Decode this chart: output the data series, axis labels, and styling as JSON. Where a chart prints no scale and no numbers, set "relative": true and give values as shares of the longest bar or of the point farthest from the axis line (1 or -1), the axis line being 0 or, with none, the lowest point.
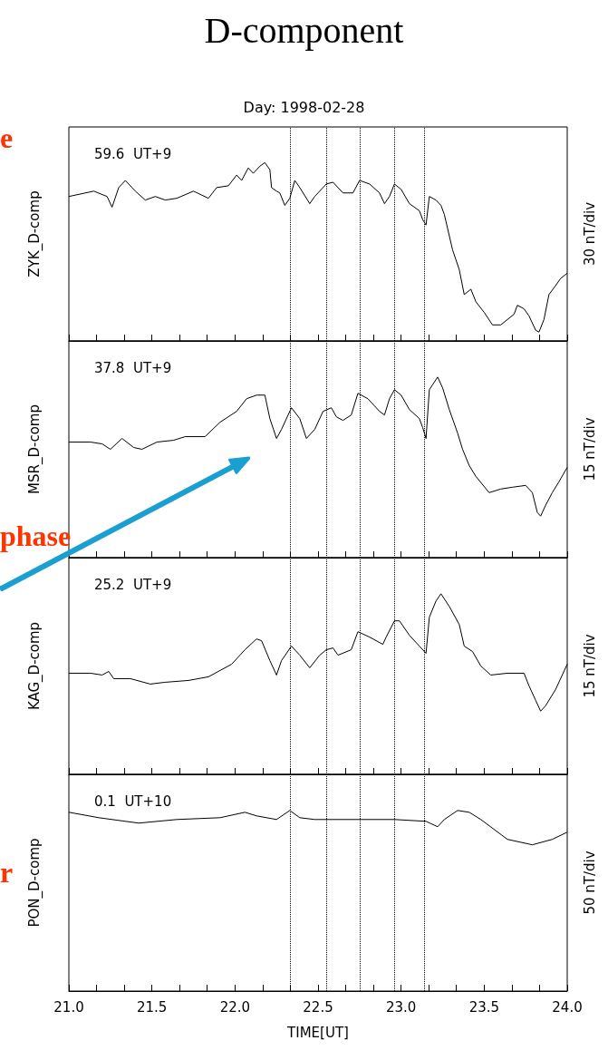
{
  "chart_data": [
    {
      "type": "line",
      "relative": true,
      "title": "D-component",
      "subtitle": "Day: 1998-02-28",
      "ylabel": "ZYK_D-comp",
      "y2label": "30 nT/div",
      "color": "#000000",
      "tick_labels": false,
      "xlim": [
        21,
        24
      ],
      "xticks": [
        {
          "value": 21,
          "label": null
        },
        {
          "value": 21.167,
          "label": null
        },
        {
          "value": 21.333,
          "label": null
        },
        {
          "value": 21.5,
          "label": null
        },
        {
          "value": 21.667,
          "label": null
        },
        {
          "value": 21.833,
          "label": null
        },
        {
          "value": 22,
          "label": null
        },
        {
          "value": 22.167,
          "label": null
        },
        {
          "value": 22.333,
          "label": null
        },
        {
          "value": 22.5,
          "label": null
        },
        {
          "value": 22.667,
          "label": null
        },
        {
          "value": 22.833,
          "label": null
        },
        {
          "value": 23,
          "label": null
        },
        {
          "value": 23.167,
          "label": null
        },
        {
          "value": 23.333,
          "label": null
        },
        {
          "value": 23.5,
          "label": null
        },
        {
          "value": 23.667,
          "label": null
        },
        {
          "value": 23.833,
          "label": null
        },
        {
          "value": 24,
          "label": null
        }
      ],
      "x": [
        21.0,
        21.15,
        21.23,
        21.26,
        21.3,
        21.34,
        21.4,
        21.46,
        21.52,
        21.58,
        21.65,
        21.75,
        21.84,
        21.89,
        21.96,
        22.01,
        22.04,
        22.08,
        22.11,
        22.15,
        22.18,
        22.21,
        22.22,
        22.25,
        22.27,
        22.3,
        22.33,
        22.36,
        22.39,
        22.45,
        22.48,
        22.55,
        22.59,
        22.65,
        22.71,
        22.75,
        22.81,
        22.87,
        22.9,
        22.93,
        22.96,
        23.0,
        23.05,
        23.11,
        23.13,
        23.15,
        23.17,
        23.21,
        23.24,
        23.26,
        23.28,
        23.31,
        23.35,
        23.38,
        23.42,
        23.45,
        23.5,
        23.55,
        23.6,
        23.64,
        23.68,
        23.7,
        23.74,
        23.77,
        23.81,
        23.83,
        23.86,
        23.89,
        23.93,
        23.96,
        24.0
      ],
      "values": [
        0.81,
        0.84,
        0.81,
        0.75,
        0.86,
        0.9,
        0.84,
        0.79,
        0.81,
        0.79,
        0.8,
        0.84,
        0.8,
        0.86,
        0.87,
        0.93,
        0.9,
        0.97,
        0.94,
        0.98,
        1,
        0.96,
        0.86,
        0.84,
        0.83,
        0.76,
        0.8,
        0.9,
        0.86,
        0.77,
        0.81,
        0.88,
        0.89,
        0.83,
        0.83,
        0.9,
        0.88,
        0.83,
        0.77,
        0.81,
        0.88,
        0.85,
        0.77,
        0.73,
        0.68,
        0.65,
        0.81,
        0.79,
        0.76,
        0.71,
        0.63,
        0.51,
        0.4,
        0.26,
        0.29,
        0.22,
        0.16,
        0.09,
        0.09,
        0.12,
        0.15,
        0.2,
        0.18,
        0.14,
        0.06,
        0.05,
        0.12,
        0.26,
        0.31,
        0.35,
        0.38
      ],
      "ref_lines": [
        {
          "axis": "x",
          "value": 22.33,
          "line_style": "dotted"
        },
        {
          "axis": "x",
          "value": 22.55,
          "line_style": "dotted"
        },
        {
          "axis": "x",
          "value": 22.75,
          "line_style": "dotted"
        },
        {
          "axis": "x",
          "value": 22.96,
          "line_style": "dotted"
        },
        {
          "axis": "x",
          "value": 23.14,
          "line_style": "dotted"
        }
      ],
      "annotations": [
        "59.6  UT+9",
        "e"
      ]
    },
    {
      "type": "line",
      "relative": true,
      "ylabel": "MSR_D-comp",
      "y2label": "15 nT/div",
      "color": "#000000",
      "tick_labels": false,
      "xlim": [
        21,
        24
      ],
      "xticks": [
        {
          "value": 21,
          "label": null
        },
        {
          "value": 21.167,
          "label": null
        },
        {
          "value": 21.333,
          "label": null
        },
        {
          "value": 21.5,
          "label": null
        },
        {
          "value": 21.667,
          "label": null
        },
        {
          "value": 21.833,
          "label": null
        },
        {
          "value": 22,
          "label": null
        },
        {
          "value": 22.167,
          "label": null
        },
        {
          "value": 22.333,
          "label": null
        },
        {
          "value": 22.5,
          "label": null
        },
        {
          "value": 22.667,
          "label": null
        },
        {
          "value": 22.833,
          "label": null
        },
        {
          "value": 23,
          "label": null
        },
        {
          "value": 23.167,
          "label": null
        },
        {
          "value": 23.333,
          "label": null
        },
        {
          "value": 23.5,
          "label": null
        },
        {
          "value": 23.667,
          "label": null
        },
        {
          "value": 23.833,
          "label": null
        },
        {
          "value": 24,
          "label": null
        }
      ],
      "x": [
        21.0,
        21.13,
        21.2,
        21.25,
        21.32,
        21.39,
        21.44,
        21.53,
        21.63,
        21.7,
        21.82,
        21.91,
        22.01,
        22.07,
        22.13,
        22.18,
        22.21,
        22.25,
        22.28,
        22.34,
        22.39,
        22.43,
        22.48,
        22.53,
        22.58,
        22.61,
        22.65,
        22.7,
        22.74,
        22.8,
        22.87,
        22.9,
        22.93,
        22.96,
        23.0,
        23.05,
        23.11,
        23.13,
        23.15,
        23.17,
        23.22,
        23.25,
        23.29,
        23.34,
        23.37,
        23.41,
        23.45,
        23.53,
        23.6,
        23.67,
        23.75,
        23.79,
        23.82,
        23.84,
        23.87,
        23.91,
        23.95,
        24.0
      ],
      "values": [
        0.64,
        0.64,
        0.63,
        0.6,
        0.66,
        0.61,
        0.6,
        0.64,
        0.65,
        0.67,
        0.67,
        0.75,
        0.81,
        0.88,
        0.9,
        0.9,
        0.77,
        0.66,
        0.71,
        0.83,
        0.77,
        0.66,
        0.71,
        0.81,
        0.83,
        0.78,
        0.76,
        0.79,
        0.91,
        0.88,
        0.81,
        0.79,
        0.88,
        0.93,
        0.9,
        0.82,
        0.77,
        0.72,
        0.66,
        0.93,
        1,
        0.94,
        0.82,
        0.69,
        0.6,
        0.51,
        0.45,
        0.36,
        0.38,
        0.39,
        0.4,
        0.36,
        0.25,
        0.23,
        0.29,
        0.36,
        0.42,
        0.5
      ],
      "ref_lines": [
        {
          "axis": "x",
          "value": 22.33,
          "line_style": "dotted"
        },
        {
          "axis": "x",
          "value": 22.55,
          "line_style": "dotted"
        },
        {
          "axis": "x",
          "value": 22.75,
          "line_style": "dotted"
        },
        {
          "axis": "x",
          "value": 22.96,
          "line_style": "dotted"
        },
        {
          "axis": "x",
          "value": 23.14,
          "line_style": "dotted"
        }
      ],
      "annotations": [
        "37.8  UT+9",
        "phase"
      ]
    },
    {
      "type": "line",
      "relative": true,
      "ylabel": "KAG_D-comp",
      "y2label": "15 nT/div",
      "color": "#000000",
      "tick_labels": false,
      "xlim": [
        21,
        24
      ],
      "xticks": [
        {
          "value": 21,
          "label": null
        },
        {
          "value": 21.167,
          "label": null
        },
        {
          "value": 21.333,
          "label": null
        },
        {
          "value": 21.5,
          "label": null
        },
        {
          "value": 21.667,
          "label": null
        },
        {
          "value": 21.833,
          "label": null
        },
        {
          "value": 22,
          "label": null
        },
        {
          "value": 22.167,
          "label": null
        },
        {
          "value": 22.333,
          "label": null
        },
        {
          "value": 22.5,
          "label": null
        },
        {
          "value": 22.667,
          "label": null
        },
        {
          "value": 22.833,
          "label": null
        },
        {
          "value": 23,
          "label": null
        },
        {
          "value": 23.167,
          "label": null
        },
        {
          "value": 23.333,
          "label": null
        },
        {
          "value": 23.5,
          "label": null
        },
        {
          "value": 23.667,
          "label": null
        },
        {
          "value": 23.833,
          "label": null
        },
        {
          "value": 24,
          "label": null
        }
      ],
      "x": [
        21.0,
        21.13,
        21.2,
        21.24,
        21.27,
        21.37,
        21.49,
        21.58,
        21.72,
        21.84,
        21.98,
        22.06,
        22.13,
        22.16,
        22.21,
        22.25,
        22.28,
        22.34,
        22.39,
        22.45,
        22.51,
        22.55,
        22.59,
        22.62,
        22.7,
        22.74,
        22.81,
        22.89,
        22.91,
        22.96,
        22.99,
        23.05,
        23.11,
        23.15,
        23.17,
        23.21,
        23.24,
        23.29,
        23.35,
        23.38,
        23.43,
        23.48,
        23.54,
        23.64,
        23.74,
        23.77,
        23.81,
        23.84,
        23.87,
        23.93,
        24.0
      ],
      "values": [
        0.56,
        0.56,
        0.55,
        0.57,
        0.53,
        0.53,
        0.5,
        0.51,
        0.52,
        0.54,
        0.61,
        0.69,
        0.75,
        0.74,
        0.63,
        0.55,
        0.63,
        0.71,
        0.66,
        0.59,
        0.66,
        0.69,
        0.7,
        0.66,
        0.69,
        0.79,
        0.76,
        0.72,
        0.76,
        0.85,
        0.85,
        0.77,
        0.71,
        0.67,
        0.87,
        0.96,
        1,
        0.93,
        0.83,
        0.71,
        0.68,
        0.6,
        0.55,
        0.56,
        0.56,
        0.49,
        0.41,
        0.35,
        0.38,
        0.47,
        0.61
      ],
      "ref_lines": [
        {
          "axis": "x",
          "value": 22.33,
          "line_style": "dotted"
        },
        {
          "axis": "x",
          "value": 22.55,
          "line_style": "dotted"
        },
        {
          "axis": "x",
          "value": 22.75,
          "line_style": "dotted"
        },
        {
          "axis": "x",
          "value": 22.96,
          "line_style": "dotted"
        },
        {
          "axis": "x",
          "value": 23.14,
          "line_style": "dotted"
        }
      ],
      "annotations": [
        "25.2  UT+9"
      ]
    },
    {
      "type": "line",
      "relative": true,
      "xlabel": "TIME[UT]",
      "ylabel": "PON_D-comp",
      "y2label": "50 nT/div",
      "color": "#000000",
      "tick_labels": "x",
      "xlim": [
        21,
        24
      ],
      "xticks": [
        {
          "value": 21,
          "label": "21.0"
        },
        {
          "value": 21.167,
          "label": null
        },
        {
          "value": 21.333,
          "label": null
        },
        {
          "value": 21.5,
          "label": "21.5"
        },
        {
          "value": 21.667,
          "label": null
        },
        {
          "value": 21.833,
          "label": null
        },
        {
          "value": 22,
          "label": "22.0"
        },
        {
          "value": 22.167,
          "label": null
        },
        {
          "value": 22.333,
          "label": null
        },
        {
          "value": 22.5,
          "label": "22.5"
        },
        {
          "value": 22.667,
          "label": null
        },
        {
          "value": 22.833,
          "label": null
        },
        {
          "value": 23,
          "label": "23.0"
        },
        {
          "value": 23.167,
          "label": null
        },
        {
          "value": 23.333,
          "label": null
        },
        {
          "value": 23.5,
          "label": "23.5"
        },
        {
          "value": 23.667,
          "label": null
        },
        {
          "value": 23.833,
          "label": null
        },
        {
          "value": 24,
          "label": "24.0"
        }
      ],
      "x": [
        21.0,
        21.18,
        21.42,
        21.65,
        21.91,
        22.06,
        22.13,
        22.25,
        22.33,
        22.39,
        22.48,
        22.96,
        23.15,
        23.22,
        23.26,
        23.34,
        23.41,
        23.48,
        23.64,
        23.79,
        23.91,
        24.0
      ],
      "values": [
        0.99,
        0.96,
        0.93,
        0.95,
        0.96,
        0.99,
        0.97,
        0.95,
        1,
        0.96,
        0.95,
        0.95,
        0.94,
        0.91,
        0.95,
        1,
        0.99,
        0.95,
        0.84,
        0.81,
        0.84,
        0.88
      ],
      "ref_lines": [
        {
          "axis": "x",
          "value": 22.33,
          "line_style": "dotted"
        },
        {
          "axis": "x",
          "value": 22.55,
          "line_style": "dotted"
        },
        {
          "axis": "x",
          "value": 22.75,
          "line_style": "dotted"
        },
        {
          "axis": "x",
          "value": 22.96,
          "line_style": "dotted"
        },
        {
          "axis": "x",
          "value": 23.14,
          "line_style": "dotted"
        }
      ],
      "annotations": [
        "0.1  UT+10",
        "r"
      ]
    }
  ]
}
